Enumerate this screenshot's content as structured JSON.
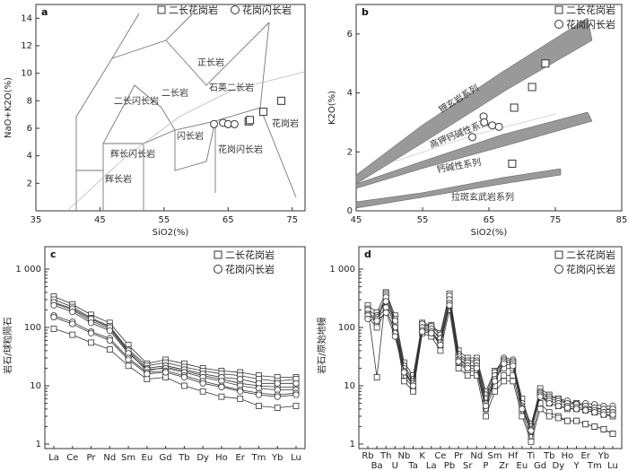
{
  "chart_data": [
    {
      "type": "scatter",
      "panel": "a",
      "xlabel": "SiO2(%)",
      "ylabel": "NaO+K2O(%)",
      "xlim": [
        35,
        77
      ],
      "ylim": [
        0,
        15
      ],
      "xticks": [
        35,
        45,
        55,
        65,
        75
      ],
      "yticks": [
        2,
        4,
        6,
        8,
        10,
        12,
        14
      ],
      "legend": [
        "二长花岗岩",
        "花岗闪长岩"
      ],
      "fields": [
        "正长岩",
        "二长闪长岩",
        "二长岩",
        "石英二长岩",
        "辉长闪长岩",
        "闪长岩",
        "花岗闪长岩",
        "花岗岩",
        "辉长岩"
      ],
      "series": [
        {
          "name": "二长花岗岩",
          "marker": "square",
          "x": [
            68.2,
            68.4,
            70.5,
            73.3
          ],
          "y": [
            6.5,
            6.6,
            7.2,
            8.0
          ]
        },
        {
          "name": "花岗闪长岩",
          "marker": "circle",
          "x": [
            62.8,
            64.2,
            65.0,
            66.0
          ],
          "y": [
            6.3,
            6.4,
            6.3,
            6.3
          ]
        }
      ]
    },
    {
      "type": "scatter",
      "panel": "b",
      "xlabel": "SiO2(%)",
      "ylabel": "K2O(%)",
      "xlim": [
        45,
        85
      ],
      "ylim": [
        0,
        7
      ],
      "xticks": [
        45,
        55,
        65,
        75,
        85
      ],
      "yticks": [
        0,
        2,
        4,
        6
      ],
      "legend": [
        "二长花岗岩",
        "花岗闪长岩"
      ],
      "series_labels": [
        "钾玄岩系列",
        "高钾钙碱性系列",
        "钙碱性系列",
        "拉斑玄武岩系列"
      ],
      "series": [
        {
          "name": "二长花岗岩",
          "marker": "square",
          "x": [
            68.5,
            68.8,
            71.5,
            73.5
          ],
          "y": [
            1.6,
            3.5,
            4.2,
            5.0
          ]
        },
        {
          "name": "花岗闪长岩",
          "marker": "circle",
          "x": [
            62.5,
            64.2,
            64.3,
            65.5,
            66.5
          ],
          "y": [
            2.5,
            3.2,
            3.0,
            2.9,
            2.85
          ]
        }
      ]
    },
    {
      "type": "line",
      "panel": "c",
      "ylabel": "岩石/球粒陨石",
      "log_y": true,
      "ylim": [
        1,
        1000
      ],
      "yticks": [
        1,
        10,
        100,
        "1 000"
      ],
      "categories": [
        "La",
        "Ce",
        "Pr",
        "Nd",
        "Sm",
        "Eu",
        "Gd",
        "Tb",
        "Dy",
        "Ho",
        "Er",
        "Tm",
        "Yb",
        "Lu"
      ],
      "legend": [
        "二长花岗岩",
        "花岗闪长岩"
      ],
      "series": [
        {
          "marker": "square",
          "values": [
            340,
            250,
            165,
            120,
            50,
            24,
            28,
            24,
            20,
            18,
            17,
            15,
            14,
            14
          ]
        },
        {
          "marker": "square",
          "values": [
            300,
            225,
            145,
            105,
            42,
            22,
            25,
            21,
            18,
            16,
            15,
            13,
            12,
            13
          ]
        },
        {
          "marker": "square",
          "values": [
            260,
            200,
            130,
            95,
            38,
            18,
            21,
            18,
            15,
            13,
            11,
            10,
            9.5,
            9.5
          ]
        },
        {
          "marker": "square",
          "values": [
            95,
            75,
            55,
            42,
            22,
            13,
            14,
            10,
            8,
            6.5,
            6,
            4.5,
            4.2,
            4.5
          ]
        },
        {
          "marker": "circle",
          "values": [
            270,
            210,
            140,
            100,
            40,
            20,
            22,
            19,
            16,
            14,
            13,
            11,
            11,
            11
          ]
        },
        {
          "marker": "circle",
          "values": [
            240,
            185,
            120,
            88,
            36,
            19,
            20,
            17,
            14,
            12,
            10,
            9,
            8.5,
            8.5
          ]
        },
        {
          "marker": "circle",
          "values": [
            160,
            125,
            85,
            65,
            30,
            17,
            18,
            15,
            12,
            10,
            8.5,
            7.5,
            7,
            7.5
          ]
        },
        {
          "marker": "circle",
          "values": [
            150,
            115,
            80,
            60,
            28,
            16,
            17,
            14,
            11,
            9.5,
            8,
            7,
            6.5,
            7
          ]
        }
      ]
    },
    {
      "type": "line",
      "panel": "d",
      "ylabel": "岩石/原始地幔",
      "log_y": true,
      "ylim": [
        1,
        1000
      ],
      "yticks": [
        1,
        10,
        100,
        "1 000"
      ],
      "categories": [
        "Rb",
        "Ba",
        "Th",
        "U",
        "Nb",
        "Ta",
        "K",
        "La",
        "Ce",
        "Pb",
        "Pr",
        "Sr",
        "Nd",
        "P",
        "Sm",
        "Zr",
        "Hf",
        "Eu",
        "Ti",
        "Gd",
        "Tb",
        "Dy",
        "Ho",
        "Y",
        "Er",
        "Tm",
        "Yb",
        "Lu"
      ],
      "legend": [
        "二长花岗岩",
        "花岗闪长岩"
      ],
      "series": [
        {
          "marker": "square",
          "values": [
            240,
            180,
            400,
            160,
            25,
            15,
            120,
            110,
            80,
            380,
            40,
            30,
            30,
            8,
            18,
            25,
            25,
            6,
            2,
            9,
            7,
            6,
            5,
            5,
            4.5,
            4,
            4,
            3.8
          ]
        },
        {
          "marker": "square",
          "values": [
            210,
            14,
            380,
            140,
            18,
            10,
            110,
            100,
            60,
            300,
            30,
            22,
            22,
            5,
            14,
            20,
            20,
            4,
            1.6,
            7,
            5,
            4.5,
            4,
            4,
            3.8,
            3.5,
            3.2,
            3
          ]
        },
        {
          "marker": "square",
          "values": [
            180,
            120,
            350,
            110,
            15,
            9,
            95,
            90,
            50,
            250,
            25,
            18,
            18,
            4,
            10,
            15,
            15,
            3.5,
            1.3,
            5,
            3.5,
            3,
            2.5,
            2.5,
            2.2,
            2,
            1.8,
            1.5
          ]
        },
        {
          "marker": "square",
          "values": [
            150,
            100,
            200,
            90,
            12,
            8,
            80,
            70,
            40,
            200,
            20,
            15,
            15,
            3,
            8,
            12,
            12,
            3,
            1.1,
            4,
            3,
            2.8,
            2.5,
            2.5,
            2.2,
            2,
            1.8,
            1.5
          ]
        },
        {
          "marker": "circle",
          "values": [
            200,
            160,
            330,
            130,
            22,
            13,
            115,
            105,
            75,
            350,
            35,
            27,
            27,
            7,
            17,
            30,
            28,
            5,
            2.2,
            8,
            6.5,
            6,
            5.5,
            5,
            5,
            4.8,
            4.5,
            4.5
          ]
        },
        {
          "marker": "circle",
          "values": [
            170,
            150,
            280,
            100,
            20,
            12,
            100,
            95,
            65,
            300,
            32,
            25,
            25,
            6,
            15,
            28,
            26,
            4.5,
            2,
            7.5,
            6,
            5.5,
            5,
            4.8,
            4.5,
            4.2,
            4,
            4
          ]
        },
        {
          "marker": "circle",
          "values": [
            160,
            140,
            220,
            80,
            18,
            11,
            90,
            85,
            55,
            260,
            28,
            22,
            22,
            5,
            13,
            26,
            24,
            4.2,
            1.8,
            7,
            5.5,
            5,
            4.5,
            4.3,
            4,
            3.8,
            3.5,
            3.5
          ]
        },
        {
          "marker": "circle",
          "values": [
            140,
            130,
            180,
            70,
            17,
            10,
            85,
            80,
            50,
            240,
            26,
            20,
            20,
            4.5,
            12,
            24,
            22,
            4,
            1.7,
            6.5,
            5,
            4.5,
            4.2,
            4,
            3.8,
            3.5,
            3.2,
            3.2
          ]
        }
      ]
    }
  ]
}
